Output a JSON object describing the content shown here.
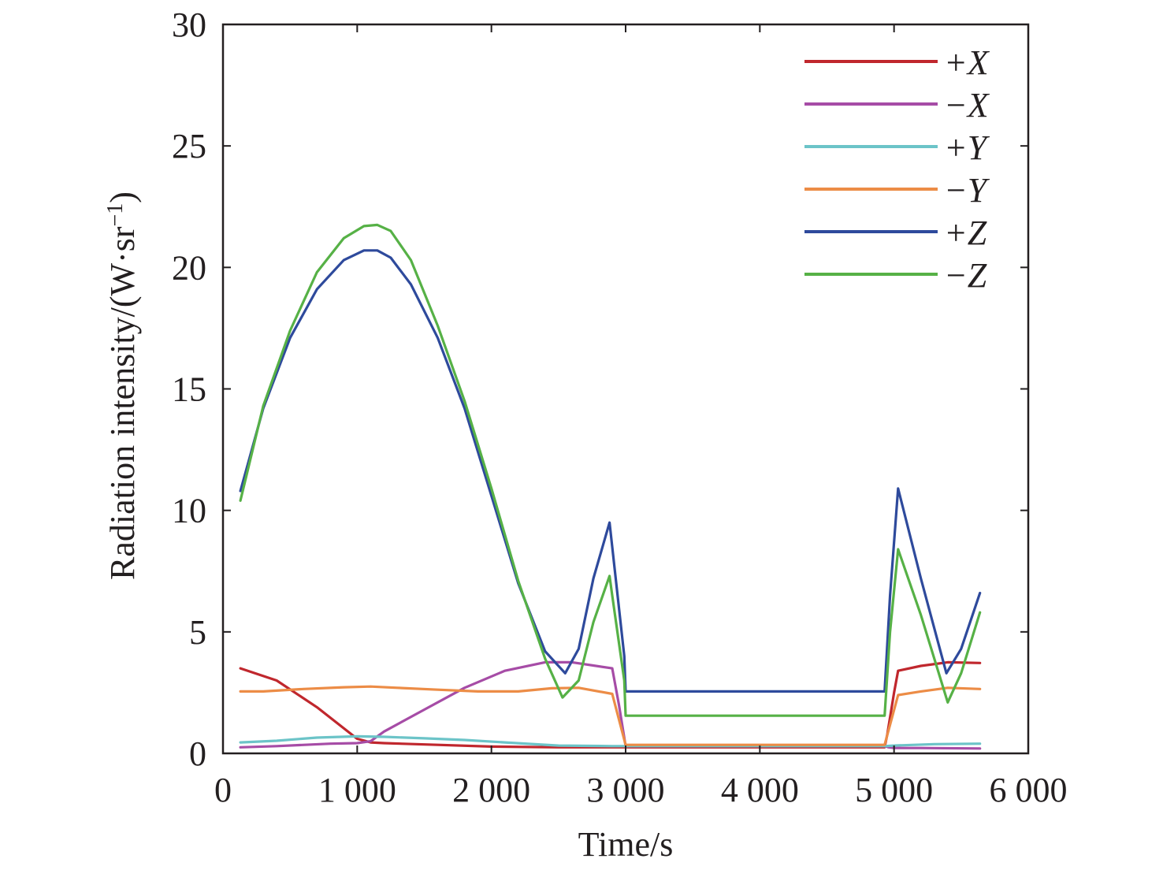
{
  "chart_data": {
    "type": "line",
    "xlabel": "Time/s",
    "ylabel": {
      "main": "Radiation intensity/(W·sr",
      "superscript": "−1",
      "close": ")"
    },
    "xlim": [
      0,
      6000
    ],
    "ylim": [
      0,
      30
    ],
    "xticks": [
      0,
      1000,
      2000,
      3000,
      4000,
      5000,
      6000
    ],
    "xtick_labels": [
      "0",
      "1 000",
      "2 000",
      "3 000",
      "4 000",
      "5 000",
      "6 000"
    ],
    "yticks": [
      0,
      5,
      10,
      15,
      20,
      25,
      30
    ],
    "ytick_labels": [
      "0",
      "5",
      "10",
      "15",
      "20",
      "25",
      "30"
    ],
    "grid": false,
    "legend_position": "top-right",
    "series": [
      {
        "name": "+X",
        "color": "#c0272d",
        "x": [
          130,
          400,
          700,
          1000,
          1100,
          1200,
          1600,
          2000,
          2500,
          2900,
          2980,
          3000,
          4000,
          4930,
          4950,
          5000,
          5030,
          5200,
          5400,
          5640
        ],
        "y": [
          3.5,
          3.0,
          1.9,
          0.6,
          0.45,
          0.42,
          0.35,
          0.28,
          0.25,
          0.25,
          0.25,
          0.25,
          0.25,
          0.25,
          0.8,
          2.5,
          3.4,
          3.6,
          3.75,
          3.72
        ]
      },
      {
        "name": "−X",
        "color": "#a64ca6",
        "x": [
          130,
          400,
          800,
          1000,
          1100,
          1200,
          1500,
          1800,
          2100,
          2400,
          2600,
          2900,
          2950,
          3000,
          4000,
          4930,
          4960,
          5000,
          5200,
          5640
        ],
        "y": [
          0.25,
          0.3,
          0.4,
          0.42,
          0.5,
          0.9,
          1.8,
          2.7,
          3.4,
          3.75,
          3.75,
          3.5,
          2.0,
          0.3,
          0.3,
          0.3,
          0.25,
          0.22,
          0.22,
          0.2
        ]
      },
      {
        "name": "+Y",
        "color": "#6cc4c8",
        "x": [
          130,
          400,
          700,
          1000,
          1200,
          1500,
          1800,
          2100,
          2500,
          2900,
          3000,
          4000,
          4930,
          5000,
          5300,
          5640
        ],
        "y": [
          0.45,
          0.52,
          0.65,
          0.7,
          0.68,
          0.62,
          0.55,
          0.45,
          0.32,
          0.3,
          0.3,
          0.3,
          0.3,
          0.32,
          0.38,
          0.4
        ]
      },
      {
        "name": "−Y",
        "color": "#ec8c46",
        "x": [
          130,
          300,
          600,
          900,
          1100,
          1300,
          1600,
          1900,
          2200,
          2450,
          2650,
          2900,
          3000,
          4000,
          4930,
          5030,
          5200,
          5400,
          5640
        ],
        "y": [
          2.55,
          2.55,
          2.65,
          2.72,
          2.75,
          2.7,
          2.62,
          2.55,
          2.55,
          2.68,
          2.7,
          2.45,
          0.35,
          0.35,
          0.35,
          2.4,
          2.55,
          2.7,
          2.65
        ]
      },
      {
        "name": "+Z",
        "color": "#2e4a9c",
        "x": [
          130,
          300,
          500,
          700,
          900,
          1050,
          1150,
          1250,
          1400,
          1600,
          1800,
          2000,
          2200,
          2400,
          2550,
          2650,
          2760,
          2880,
          2900,
          2990,
          3000,
          4000,
          4930,
          4970,
          5030,
          5200,
          5390,
          5500,
          5640
        ],
        "y": [
          10.8,
          14.2,
          17.1,
          19.1,
          20.3,
          20.7,
          20.7,
          20.4,
          19.3,
          17.1,
          14.2,
          10.6,
          7.0,
          4.2,
          3.3,
          4.3,
          7.2,
          9.5,
          8.5,
          4.0,
          2.55,
          2.55,
          2.55,
          6.5,
          10.9,
          7.2,
          3.3,
          4.3,
          6.6
        ]
      },
      {
        "name": "−Z",
        "color": "#56b146",
        "x": [
          130,
          300,
          500,
          700,
          900,
          1050,
          1150,
          1250,
          1400,
          1600,
          1800,
          2000,
          2200,
          2400,
          2530,
          2650,
          2760,
          2880,
          2900,
          2990,
          3000,
          4000,
          4930,
          4970,
          5030,
          5200,
          5400,
          5500,
          5640
        ],
        "y": [
          10.4,
          14.3,
          17.4,
          19.8,
          21.2,
          21.7,
          21.75,
          21.5,
          20.3,
          17.6,
          14.5,
          10.9,
          7.1,
          3.9,
          2.3,
          3.0,
          5.4,
          7.3,
          6.5,
          3.0,
          1.55,
          1.55,
          1.55,
          5.0,
          8.4,
          5.7,
          2.1,
          3.3,
          5.8
        ]
      }
    ]
  }
}
